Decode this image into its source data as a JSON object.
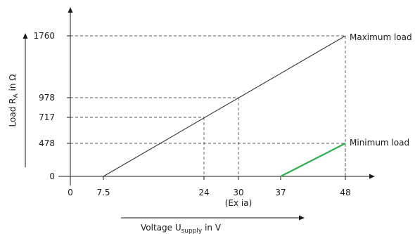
{
  "chart_data": {
    "type": "line",
    "xlabel_main": "Voltage U",
    "xlabel_sub": "supply",
    "xlabel_tail": " in V",
    "ylabel_main": "Load R",
    "ylabel_sub": "A",
    "ylabel_tail": " in Ω",
    "x_ticks": [
      "0",
      "7.5",
      "24",
      "30",
      "37",
      "48"
    ],
    "x_tick_values": [
      0,
      7.5,
      24,
      30,
      37,
      48
    ],
    "x_annotation": "(Ex ia)",
    "y_ticks": [
      "0",
      "478",
      "717",
      "978",
      "1760"
    ],
    "y_tick_values": [
      0,
      478,
      717,
      978,
      1760
    ],
    "series": [
      {
        "name": "Maximum load",
        "color": "#333333",
        "points": [
          [
            7.5,
            0
          ],
          [
            48,
            1760
          ]
        ]
      },
      {
        "name": "Minimum load",
        "color": "#2fb04a",
        "points": [
          [
            37,
            0
          ],
          [
            48,
            478
          ]
        ]
      }
    ],
    "guides": [
      {
        "x": 24,
        "y": 717
      },
      {
        "x": 30,
        "y": 978
      },
      {
        "x": 48,
        "y": 1760
      },
      {
        "x": 48,
        "y": 478
      }
    ]
  }
}
